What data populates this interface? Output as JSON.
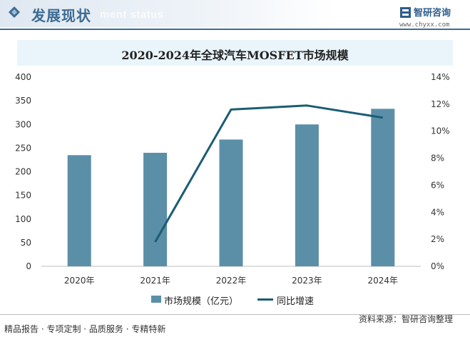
{
  "header": {
    "title": "发展现状",
    "subtitle": "ment status",
    "brand": "智研咨询",
    "url": "www.chyxx.com"
  },
  "chart_data": {
    "type": "bar",
    "title": "2020-2024年全球汽车MOSFET市场规模",
    "categories": [
      "2020年",
      "2021年",
      "2022年",
      "2023年",
      "2024年"
    ],
    "series": [
      {
        "name": "市场规模（亿元）",
        "type": "bar",
        "axis": "left",
        "values": [
          235,
          240,
          268,
          300,
          333
        ]
      },
      {
        "name": "同比增速",
        "type": "line",
        "axis": "right",
        "values": [
          null,
          1.8,
          11.6,
          11.9,
          11.0
        ]
      }
    ],
    "y_left": {
      "min": 0,
      "max": 400,
      "ticks": [
        0,
        50,
        100,
        150,
        200,
        250,
        300,
        350,
        400
      ]
    },
    "y_right": {
      "min": 0,
      "max": 14,
      "ticks": [
        "0%",
        "2%",
        "4%",
        "6%",
        "8%",
        "10%",
        "12%",
        "14%"
      ]
    },
    "grid": false,
    "legend": "bottom",
    "colors": {
      "bar": "#5b8fa8",
      "line": "#1a5d74"
    }
  },
  "footer": {
    "left": "精品报告 · 专项定制 · 品质服务 · 专精特新",
    "right": "资料来源：智研咨询整理"
  }
}
